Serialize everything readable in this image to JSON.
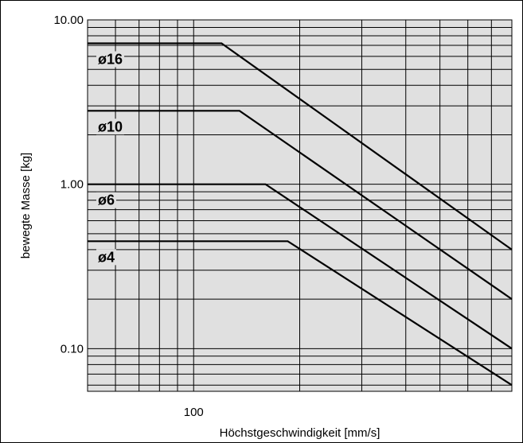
{
  "chart_data": {
    "type": "line",
    "xscale": "log",
    "yscale": "log",
    "xlim": [
      50,
      800
    ],
    "ylim": [
      0.055,
      10
    ],
    "xlabel": "Höchstgeschwindigkeit [mm/s]",
    "ylabel": "bewegte Masse [kg]",
    "xticks": [
      {
        "value": 100,
        "label": "100"
      }
    ],
    "yticks": [
      {
        "value": 10,
        "label": "10.00"
      },
      {
        "value": 1,
        "label": "1.00"
      },
      {
        "value": 0.1,
        "label": "0.10"
      }
    ],
    "x_gridlines": [
      60,
      70,
      80,
      90,
      100,
      200,
      300,
      400,
      500,
      600,
      700
    ],
    "y_gridlines": [
      0.06,
      0.07,
      0.08,
      0.09,
      0.1,
      0.2,
      0.3,
      0.4,
      0.5,
      0.6,
      0.7,
      0.8,
      0.9,
      1,
      2,
      3,
      4,
      5,
      6,
      7,
      8,
      9,
      10
    ],
    "grid": true,
    "background": "#e0e0e0",
    "line_color": "#000000",
    "series": [
      {
        "name": "ø16",
        "points": [
          [
            50,
            7.2
          ],
          [
            120,
            7.2
          ],
          [
            800,
            0.4
          ]
        ]
      },
      {
        "name": "ø10",
        "points": [
          [
            50,
            2.8
          ],
          [
            135,
            2.8
          ],
          [
            800,
            0.2
          ]
        ]
      },
      {
        "name": "ø6",
        "points": [
          [
            50,
            1.0
          ],
          [
            160,
            1.0
          ],
          [
            800,
            0.1
          ]
        ]
      },
      {
        "name": "ø4",
        "points": [
          [
            50,
            0.45
          ],
          [
            185,
            0.45
          ],
          [
            800,
            0.06
          ]
        ]
      }
    ]
  }
}
